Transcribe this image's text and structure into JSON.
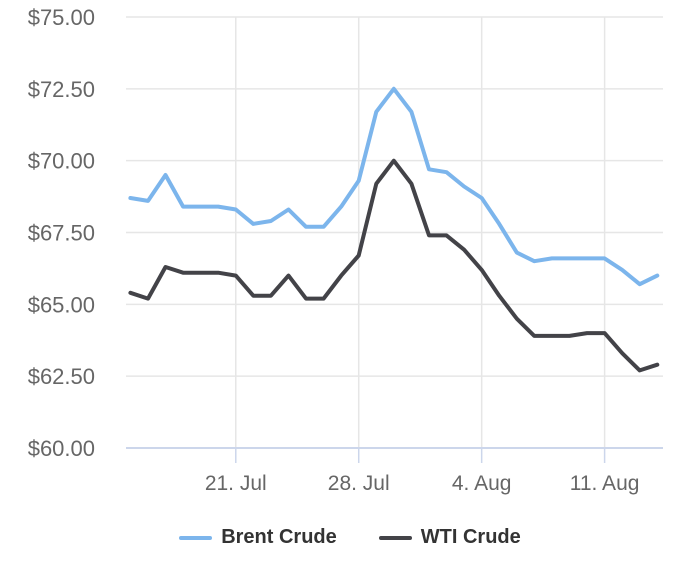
{
  "chart_data": {
    "type": "line",
    "title": "",
    "xlabel": "",
    "ylabel": "",
    "legend_position": "bottom",
    "grid": true,
    "x": [
      "15. Jul",
      "16. Jul",
      "17. Jul",
      "18. Jul",
      "19. Jul",
      "20. Jul",
      "21. Jul",
      "22. Jul",
      "23. Jul",
      "24. Jul",
      "25. Jul",
      "26. Jul",
      "27. Jul",
      "28. Jul",
      "29. Jul",
      "30. Jul",
      "31. Jul",
      "1. Aug",
      "2. Aug",
      "3. Aug",
      "4. Aug",
      "5. Aug",
      "6. Aug",
      "7. Aug",
      "8. Aug",
      "9. Aug",
      "10. Aug",
      "11. Aug",
      "12. Aug",
      "13. Aug",
      "14. Aug"
    ],
    "series": [
      {
        "name": "Brent Crude",
        "color": "#7cb5ec",
        "values": [
          68.7,
          68.6,
          69.5,
          68.4,
          68.4,
          68.4,
          68.3,
          67.8,
          67.9,
          68.3,
          67.7,
          67.7,
          68.4,
          69.3,
          71.7,
          72.5,
          71.7,
          69.7,
          69.6,
          69.1,
          68.7,
          67.8,
          66.8,
          66.5,
          66.6,
          66.6,
          66.6,
          66.6,
          66.2,
          65.7,
          66.0
        ]
      },
      {
        "name": "WTI Crude",
        "color": "#434348",
        "values": [
          65.4,
          65.2,
          66.3,
          66.1,
          66.1,
          66.1,
          66.0,
          65.3,
          65.3,
          66.0,
          65.2,
          65.2,
          66.0,
          66.7,
          69.2,
          70.0,
          69.2,
          67.4,
          67.4,
          66.9,
          66.2,
          65.3,
          64.5,
          63.9,
          63.9,
          63.9,
          64.0,
          64.0,
          63.3,
          62.7,
          62.9
        ]
      }
    ],
    "y_axis": {
      "min": 60,
      "max": 75,
      "tick_interval": 2.5,
      "tick_labels": [
        "$75.00",
        "$72.50",
        "$70.00",
        "$67.50",
        "$65.00",
        "$62.50",
        "$60.00"
      ],
      "label_color": "#666666"
    },
    "x_axis": {
      "tick_labels": [
        "21. Jul",
        "28. Jul",
        "4. Aug",
        "11. Aug"
      ],
      "tick_indices": [
        6,
        13,
        20,
        27
      ],
      "label_color": "#666666"
    },
    "colors": {
      "gridline": "#e6e6e6",
      "axis_line": "#ccd6eb",
      "background": "#ffffff",
      "legend_text": "#333333"
    }
  }
}
